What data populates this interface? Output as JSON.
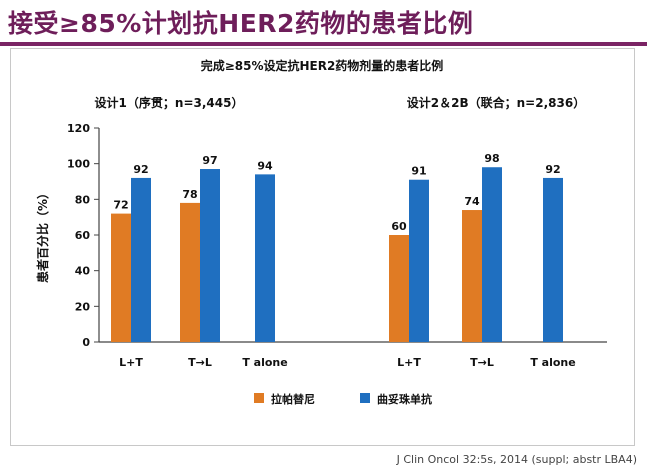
{
  "slide": {
    "title": "接受≥85%计划抗HER2药物的患者比例",
    "citation": "J Clin Oncol 32:5s, 2014 (suppl; abstr LBA4)"
  },
  "colors": {
    "title": "#6e1e5a",
    "rule": "#7a2464",
    "lapatinib": "#e07b24",
    "trastuzumab": "#1f6fc0"
  },
  "chart_data": {
    "type": "bar",
    "title": "完成≥85%设定抗HER2药物剂量的患者比例",
    "ylabel": "患者百分比（%）",
    "ylim": [
      0,
      120
    ],
    "yticks": [
      0,
      20,
      40,
      60,
      80,
      100,
      120
    ],
    "grid": false,
    "legend_position": "bottom-center",
    "groups": [
      {
        "label": "设计1（序贯；n=3,445）",
        "categories": [
          "L+T",
          "T→L",
          "T alone"
        ],
        "series": [
          {
            "name": "拉帕替尼",
            "values": [
              72,
              78,
              null
            ]
          },
          {
            "name": "曲妥珠单抗",
            "values": [
              92,
              97,
              94
            ]
          }
        ]
      },
      {
        "label": "设计2＆2B（联合；n=2,836）",
        "categories": [
          "L+T",
          "T→L",
          "T alone"
        ],
        "series": [
          {
            "name": "拉帕替尼",
            "values": [
              60,
              74,
              null
            ]
          },
          {
            "name": "曲妥珠单抗",
            "values": [
              91,
              98,
              92
            ]
          }
        ]
      }
    ]
  }
}
